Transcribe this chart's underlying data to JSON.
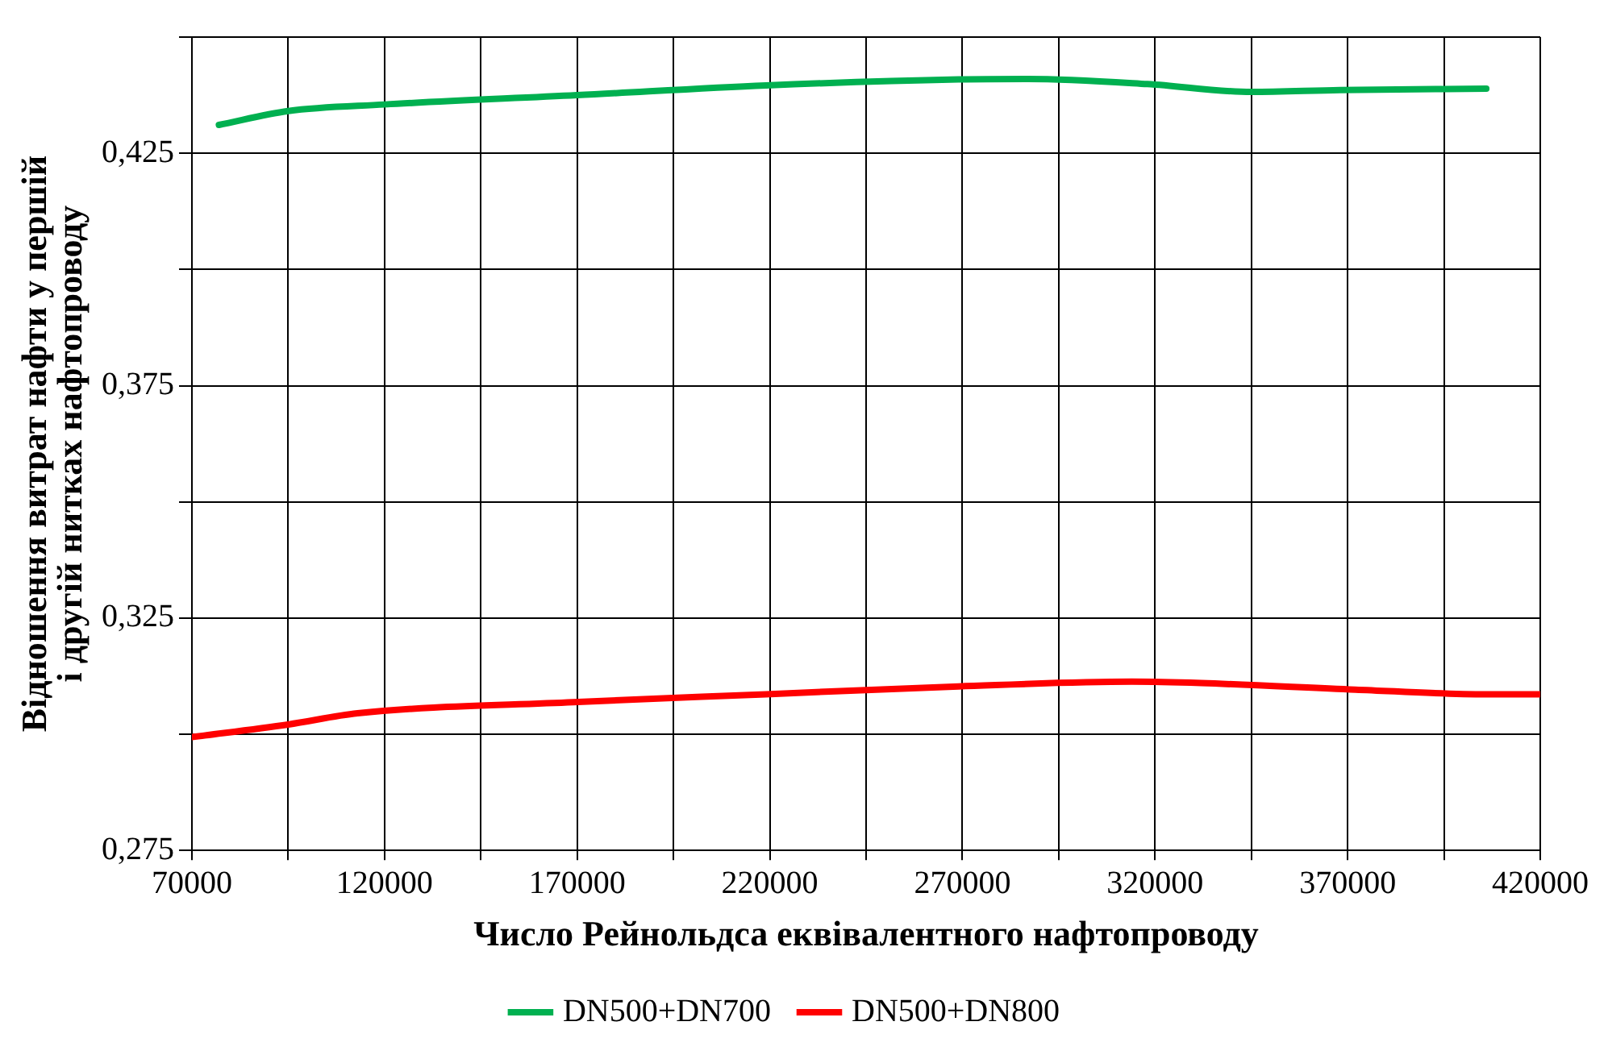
{
  "chart_data": {
    "type": "line",
    "xlabel": "Число Рейнольдса еквівалентного нафтопроводу",
    "ylabel": "Відношення витрат нафти у першій і другій нитках нафтопроводу",
    "xlim": [
      70000,
      420000
    ],
    "xticks": [
      70000,
      {
        "value": 95000,
        "label": null
      },
      120000,
      {
        "value": 145000,
        "label": null
      },
      170000,
      {
        "value": 195000,
        "label": null
      },
      220000,
      {
        "value": 245000,
        "label": null
      },
      270000,
      {
        "value": 295000,
        "label": null
      },
      320000,
      {
        "value": 345000,
        "label": null
      },
      370000,
      {
        "value": 395000,
        "label": null
      },
      420000
    ],
    "ylim": [
      0.275,
      0.45
    ],
    "yticks": [
      {
        "value": 0.275,
        "label": "0,275"
      },
      {
        "value": 0.3,
        "label": null
      },
      {
        "value": 0.325,
        "label": "0,325"
      },
      {
        "value": 0.35,
        "label": null
      },
      {
        "value": 0.375,
        "label": "0,375"
      },
      {
        "value": 0.4,
        "label": null
      },
      {
        "value": 0.425,
        "label": "0,425"
      },
      {
        "value": 0.45,
        "label": null
      }
    ],
    "grid": true,
    "legend": "bottom",
    "marker": "none",
    "line_style": "solid",
    "series": [
      {
        "name": "DN500+DN700",
        "color": "#00b050",
        "x": [
          77000,
          95000,
          120000,
          170000,
          219000,
          269000,
          287000,
          318000,
          345000,
          368000,
          406000
        ],
        "values": [
          0.4311,
          0.4341,
          0.4355,
          0.4375,
          0.4396,
          0.4409,
          0.441,
          0.4399,
          0.4382,
          0.4386,
          0.4389
        ]
      },
      {
        "name": "DN500+DN800",
        "color": "#ff0000",
        "x": [
          70000,
          95000,
          113000,
          169000,
          219000,
          269000,
          314000,
          332000,
          372000,
          406000,
          420000
        ],
        "values": [
          0.2994,
          0.3021,
          0.3045,
          0.3069,
          0.3086,
          0.3103,
          0.3113,
          0.311,
          0.3096,
          0.3086,
          0.3086
        ]
      }
    ]
  }
}
